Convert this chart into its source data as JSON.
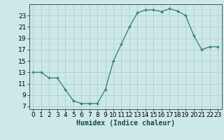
{
  "x": [
    0,
    1,
    2,
    3,
    4,
    5,
    6,
    7,
    8,
    9,
    10,
    11,
    12,
    13,
    14,
    15,
    16,
    17,
    18,
    19,
    20,
    21,
    22,
    23
  ],
  "y": [
    13,
    13,
    12,
    12,
    10,
    8,
    7.5,
    7.5,
    7.5,
    10,
    15,
    18,
    21,
    23.5,
    24,
    24,
    23.7,
    24.2,
    23.8,
    23,
    19.5,
    17,
    17.5,
    17.5
  ],
  "line_color": "#2e7d6e",
  "marker_color": "#2e7d6e",
  "bg_color": "#cde8e8",
  "grid_color_major": "#aac8c8",
  "grid_color_minor": "#bdd8d8",
  "xlabel": "Humidex (Indice chaleur)",
  "xlim": [
    -0.5,
    23.5
  ],
  "ylim": [
    6.5,
    25
  ],
  "yticks": [
    7,
    9,
    11,
    13,
    15,
    17,
    19,
    21,
    23
  ],
  "xticks": [
    0,
    1,
    2,
    3,
    4,
    5,
    6,
    7,
    8,
    9,
    10,
    11,
    12,
    13,
    14,
    15,
    16,
    17,
    18,
    19,
    20,
    21,
    22,
    23
  ],
  "label_fontsize": 7,
  "tick_fontsize": 6.5
}
